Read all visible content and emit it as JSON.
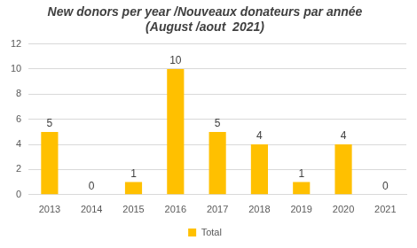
{
  "chart_data": {
    "type": "bar",
    "title": "New donors per year /Nouveaux donateurs par année",
    "subtitle": "(August /aout  2021)",
    "categories": [
      "2013",
      "2014",
      "2015",
      "2016",
      "2017",
      "2018",
      "2019",
      "2020",
      "2021"
    ],
    "series": [
      {
        "name": "Total",
        "color": "#ffc000",
        "values": [
          5,
          0,
          1,
          10,
          5,
          4,
          1,
          4,
          0
        ]
      }
    ],
    "ylim": [
      0,
      12
    ],
    "yticks": [
      0,
      2,
      4,
      6,
      8,
      10,
      12
    ],
    "grid": true,
    "legend": "bottom",
    "data_labels": true
  }
}
